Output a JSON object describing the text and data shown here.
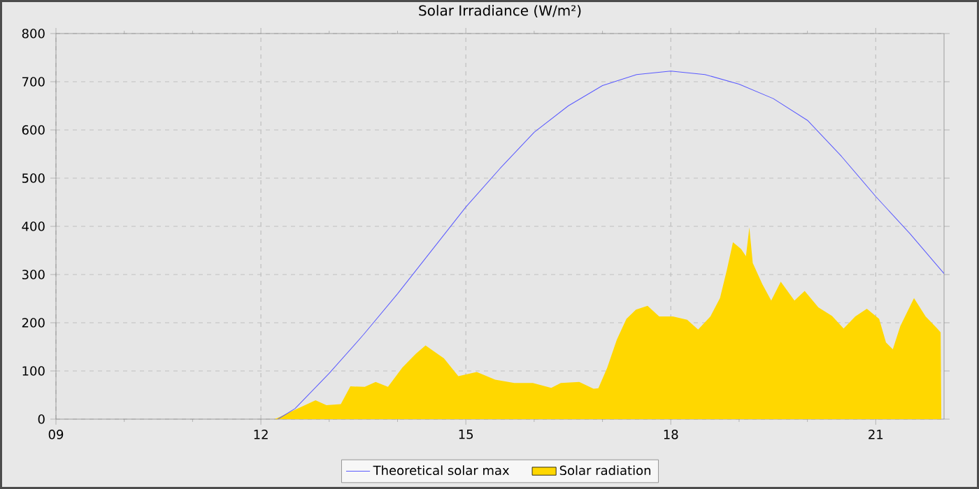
{
  "chart_data": {
    "type": "line",
    "title": "Solar Irradiance (W/m²)",
    "xlim": [
      9,
      22
    ],
    "ylim": [
      0,
      800
    ],
    "xticks": [
      {
        "value": 9,
        "label": "09"
      },
      {
        "value": 12,
        "label": "12"
      },
      {
        "value": 15,
        "label": "15"
      },
      {
        "value": 18,
        "label": "18"
      },
      {
        "value": 21,
        "label": "21"
      }
    ],
    "yticks": [
      0,
      100,
      200,
      300,
      400,
      500,
      600,
      700,
      800
    ],
    "grid": true,
    "legend": "bottom",
    "series": [
      {
        "name": "Theoretical solar max",
        "color": "#5a5aff",
        "x": [
          12.25,
          12.5,
          13,
          13.5,
          14,
          14.5,
          15,
          15.5,
          16,
          16.5,
          17,
          17.5,
          18,
          18.5,
          19,
          19.5,
          20,
          20.5,
          21,
          21.5,
          22
        ],
        "values": [
          0,
          22,
          95,
          175,
          260,
          350,
          440,
          520,
          595,
          650,
          692,
          715,
          722,
          715,
          695,
          665,
          620,
          545,
          462,
          385,
          302
        ]
      },
      {
        "name": "Solar radiation",
        "type": "area",
        "color": "#ffd700",
        "x": [
          12.2,
          12.25,
          12.49,
          12.8,
          12.96,
          13.17,
          13.31,
          13.52,
          13.68,
          13.86,
          14.07,
          14.27,
          14.41,
          14.68,
          14.89,
          15.16,
          15.43,
          15.71,
          15.98,
          16.25,
          16.39,
          16.66,
          16.87,
          16.94,
          17.07,
          17.21,
          17.35,
          17.49,
          17.66,
          17.83,
          18.03,
          18.24,
          18.4,
          18.58,
          18.72,
          18.82,
          18.91,
          19.03,
          19.1,
          19.15,
          19.2,
          19.34,
          19.47,
          19.61,
          19.81,
          19.96,
          20.16,
          20.36,
          20.53,
          20.7,
          20.87,
          21.05,
          21.15,
          21.25,
          21.36,
          21.56,
          21.73,
          21.9,
          21.95,
          21.96
        ],
        "values": [
          0,
          3,
          19,
          39,
          29,
          31,
          68,
          67,
          77,
          67,
          107,
          136,
          153,
          126,
          89,
          98,
          82,
          75,
          75,
          65,
          75,
          77,
          63,
          64,
          107,
          165,
          208,
          227,
          235,
          213,
          213,
          206,
          186,
          213,
          251,
          309,
          367,
          353,
          338,
          398,
          324,
          280,
          246,
          285,
          246,
          266,
          232,
          214,
          188,
          213,
          229,
          208,
          159,
          145,
          193,
          251,
          213,
          188,
          180,
          0
        ]
      }
    ]
  }
}
